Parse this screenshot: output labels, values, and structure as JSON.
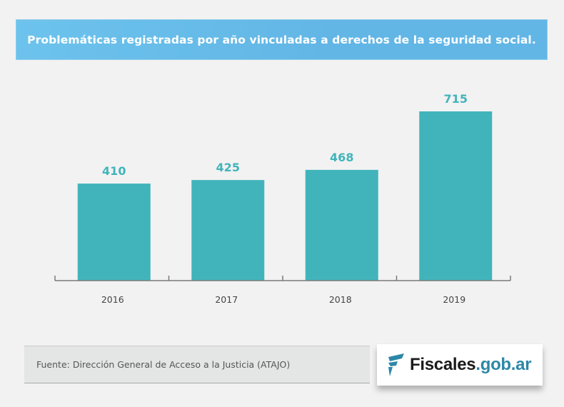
{
  "header": {
    "title": "Problemáticas registradas por año vinculadas a derechos de la seguridad social."
  },
  "colors": {
    "banner": "#64b9e7",
    "bar": "#41b4bb",
    "value_label": "#41b4bb",
    "logo_dark": "#1b1b1b",
    "logo_accent": "#2d87a8",
    "background": "#f2f2f2"
  },
  "chart_data": {
    "type": "bar",
    "title": "Problemáticas registradas por año vinculadas a derechos de la seguridad social.",
    "categories": [
      "2016",
      "2017",
      "2018",
      "2019"
    ],
    "values": [
      410,
      425,
      468,
      715
    ],
    "value_labels": [
      "410",
      "425",
      "468",
      "715"
    ],
    "xlabel": "",
    "ylabel": "",
    "ylim": [
      0,
      770
    ],
    "grid": false,
    "legend": "none"
  },
  "footer": {
    "source": "Fuente: Dirección General de Acceso a la Justicia (ATAJO)",
    "logo_main": "Fiscales",
    "logo_domain": ".gob.ar",
    "logo_icon": "fiscales-flag-icon"
  }
}
